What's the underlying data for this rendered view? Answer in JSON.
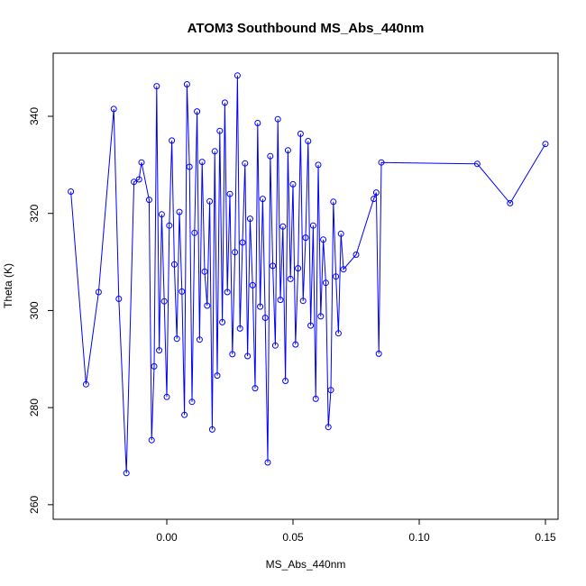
{
  "chart_data": {
    "type": "scatter",
    "title": "ATOM3 Southbound MS_Abs_440nm",
    "xlabel": "MS_Abs_440nm",
    "ylabel": "Theta (K)",
    "xlim": [
      -0.045,
      0.155
    ],
    "ylim": [
      257,
      353
    ],
    "xticks": [
      0.0,
      0.05,
      0.1,
      0.15
    ],
    "xtick_labels": [
      "0.00",
      "0.05",
      "0.10",
      "0.15"
    ],
    "yticks": [
      260,
      280,
      300,
      320,
      340
    ],
    "ytick_labels": [
      "260",
      "280",
      "300",
      "320",
      "340"
    ],
    "grid": false,
    "legend": "none",
    "series": [
      {
        "color": "#0000ff",
        "marker": "open-circle",
        "connect": true,
        "points": [
          [
            -0.038,
            324.5
          ],
          [
            -0.032,
            284.8
          ],
          [
            -0.027,
            303.8
          ],
          [
            -0.021,
            341.5
          ],
          [
            -0.019,
            302.4
          ],
          [
            -0.016,
            266.5
          ],
          [
            -0.013,
            326.5
          ],
          [
            -0.011,
            327.0
          ],
          [
            -0.01,
            330.5
          ],
          [
            -0.007,
            322.8
          ],
          [
            -0.006,
            273.3
          ],
          [
            -0.005,
            288.5
          ],
          [
            -0.004,
            346.2
          ],
          [
            -0.003,
            291.8
          ],
          [
            -0.002,
            319.8
          ],
          [
            -0.001,
            301.9
          ],
          [
            0.0,
            282.2
          ],
          [
            0.001,
            317.5
          ],
          [
            0.002,
            335.0
          ],
          [
            0.003,
            309.5
          ],
          [
            0.004,
            294.2
          ],
          [
            0.005,
            320.3
          ],
          [
            0.006,
            303.9
          ],
          [
            0.007,
            278.5
          ],
          [
            0.008,
            346.6
          ],
          [
            0.009,
            329.6
          ],
          [
            0.01,
            281.2
          ],
          [
            0.011,
            316.0
          ],
          [
            0.012,
            341.0
          ],
          [
            0.013,
            294.0
          ],
          [
            0.014,
            330.6
          ],
          [
            0.015,
            308.0
          ],
          [
            0.016,
            301.0
          ],
          [
            0.017,
            322.5
          ],
          [
            0.018,
            275.5
          ],
          [
            0.019,
            332.8
          ],
          [
            0.02,
            286.6
          ],
          [
            0.021,
            337.0
          ],
          [
            0.022,
            297.6
          ],
          [
            0.023,
            342.8
          ],
          [
            0.024,
            303.8
          ],
          [
            0.025,
            324.0
          ],
          [
            0.026,
            291.0
          ],
          [
            0.027,
            312.0
          ],
          [
            0.028,
            348.4
          ],
          [
            0.029,
            296.3
          ],
          [
            0.03,
            314.0
          ],
          [
            0.031,
            330.3
          ],
          [
            0.032,
            290.6
          ],
          [
            0.033,
            318.9
          ],
          [
            0.034,
            305.2
          ],
          [
            0.035,
            284.0
          ],
          [
            0.036,
            338.6
          ],
          [
            0.037,
            300.8
          ],
          [
            0.038,
            323.0
          ],
          [
            0.039,
            298.5
          ],
          [
            0.04,
            268.7
          ],
          [
            0.041,
            331.8
          ],
          [
            0.042,
            309.2
          ],
          [
            0.043,
            292.8
          ],
          [
            0.044,
            339.4
          ],
          [
            0.045,
            302.2
          ],
          [
            0.046,
            317.3
          ],
          [
            0.047,
            285.5
          ],
          [
            0.048,
            333.0
          ],
          [
            0.049,
            306.5
          ],
          [
            0.05,
            326.0
          ],
          [
            0.051,
            293.0
          ],
          [
            0.052,
            308.7
          ],
          [
            0.053,
            336.4
          ],
          [
            0.054,
            302.0
          ],
          [
            0.055,
            315.0
          ],
          [
            0.056,
            334.9
          ],
          [
            0.057,
            296.9
          ],
          [
            0.058,
            317.5
          ],
          [
            0.059,
            281.8
          ],
          [
            0.06,
            330.0
          ],
          [
            0.061,
            298.8
          ],
          [
            0.062,
            314.6
          ],
          [
            0.063,
            305.7
          ],
          [
            0.064,
            276.0
          ],
          [
            0.065,
            283.6
          ],
          [
            0.066,
            322.4
          ],
          [
            0.067,
            307.0
          ],
          [
            0.068,
            295.3
          ],
          [
            0.069,
            315.8
          ],
          [
            0.07,
            308.5
          ],
          [
            0.075,
            311.5
          ],
          [
            0.082,
            323.0
          ],
          [
            0.083,
            324.3
          ],
          [
            0.084,
            291.1
          ],
          [
            0.085,
            330.5
          ],
          [
            0.123,
            330.2
          ],
          [
            0.136,
            322.1
          ],
          [
            0.15,
            334.3
          ]
        ]
      }
    ]
  }
}
